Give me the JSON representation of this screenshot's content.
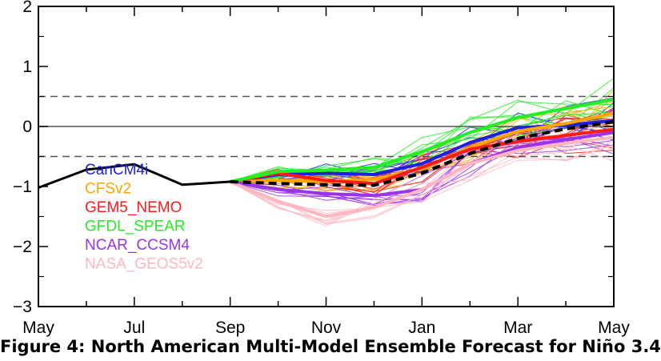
{
  "caption": "Figure 4: North American Multi-Model Ensemble Forecast for Niño 3.4",
  "chart_data": {
    "type": "line",
    "title": "",
    "xlabel": "",
    "ylabel": "",
    "x_tick_labels": [
      "May",
      "Jul",
      "Sep",
      "Nov",
      "Jan",
      "Mar",
      "May"
    ],
    "ylim": [
      -3,
      2
    ],
    "y_ticks": [
      -3,
      -2,
      -1,
      0,
      1,
      2
    ],
    "y_tick_labels": [
      "−3",
      "−2",
      "−1",
      "0",
      "1",
      "2"
    ],
    "reference_lines": [
      {
        "y": 0.5,
        "style": "dashed",
        "color": "#555555"
      },
      {
        "y": 0,
        "style": "solid",
        "color": "#555555"
      },
      {
        "y": -0.5,
        "style": "dashed",
        "color": "#555555"
      }
    ],
    "observed": {
      "color": "#000000",
      "x": [
        0,
        1,
        2,
        3,
        4
      ],
      "values": [
        -1.02,
        -0.72,
        -0.63,
        -0.97,
        -0.92
      ]
    },
    "ensemble_mean": {
      "color": "#000000",
      "style": "dashed",
      "x": [
        4,
        5,
        6,
        7,
        8,
        9,
        10,
        11,
        12
      ],
      "values": [
        -0.92,
        -0.95,
        -0.97,
        -0.98,
        -0.78,
        -0.45,
        -0.2,
        -0.04,
        0.08
      ]
    },
    "series": [
      {
        "name": "CanCM4i",
        "color": "#1f1fe0",
        "x": [
          4,
          5,
          6,
          7,
          8,
          9,
          10,
          11,
          12
        ],
        "values": [
          -0.92,
          -0.8,
          -0.78,
          -0.8,
          -0.62,
          -0.27,
          -0.02,
          0.02,
          0.1
        ]
      },
      {
        "name": "CFSv2",
        "color": "#ffa500",
        "x": [
          4,
          5,
          6,
          7,
          8,
          9,
          10,
          11,
          12
        ],
        "values": [
          -0.92,
          -0.9,
          -0.92,
          -0.88,
          -0.7,
          -0.35,
          -0.08,
          0.05,
          0.22
        ]
      },
      {
        "name": "GEM5_NEMO",
        "color": "#ff1a1a",
        "x": [
          4,
          5,
          6,
          7,
          8,
          9,
          10,
          11,
          12
        ],
        "values": [
          -0.92,
          -0.78,
          -0.9,
          -0.95,
          -0.68,
          -0.38,
          -0.25,
          -0.15,
          -0.05
        ]
      },
      {
        "name": "GFDL_SPEAR",
        "color": "#22ee22",
        "x": [
          4,
          5,
          6,
          7,
          8,
          9,
          10,
          11,
          12
        ],
        "values": [
          -0.92,
          -0.75,
          -0.73,
          -0.68,
          -0.42,
          -0.1,
          0.15,
          0.3,
          0.45
        ]
      },
      {
        "name": "NCAR_CCSM4",
        "color": "#9933ee",
        "x": [
          4,
          5,
          6,
          7,
          8,
          9,
          10,
          11,
          12
        ],
        "values": [
          -0.92,
          -1.05,
          -1.12,
          -1.15,
          -1.05,
          -0.62,
          -0.35,
          -0.22,
          -0.1
        ]
      },
      {
        "name": "NASA_GEOS5v2",
        "color": "#ffb6c1",
        "x": [
          4,
          5,
          6,
          7,
          8,
          9,
          10,
          11,
          12
        ],
        "values": [
          -0.92,
          -1.25,
          -1.5,
          -1.35,
          -1.05,
          -0.62,
          -0.4,
          -0.28,
          -0.18
        ]
      }
    ],
    "legend_placement": "bottom-left",
    "grid": false
  }
}
